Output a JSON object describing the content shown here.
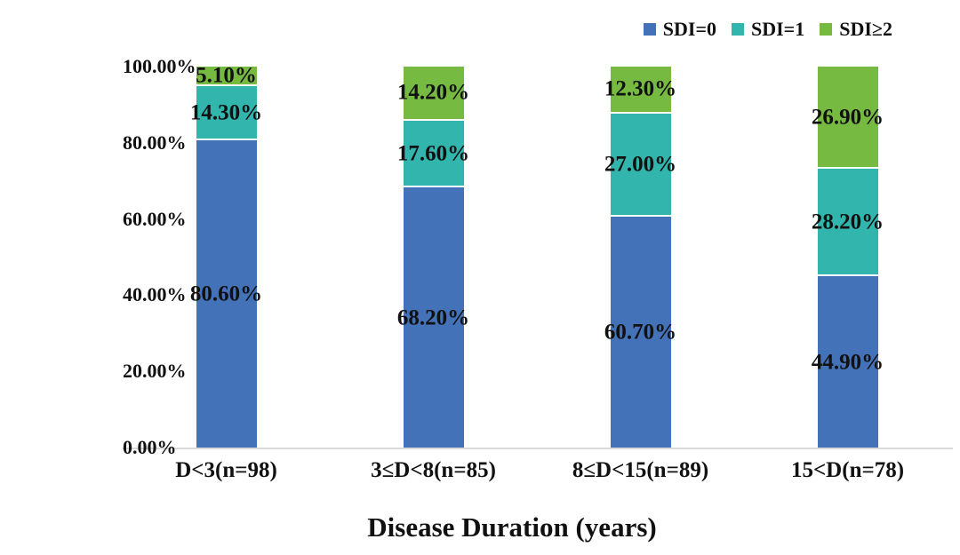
{
  "legend": {
    "items": [
      {
        "label": "SDI=0",
        "color": "#4472b9"
      },
      {
        "label": "SDI=1",
        "color": "#31b5ad"
      },
      {
        "label": "SDI≥2",
        "color": "#77ba42"
      }
    ]
  },
  "chart_data": {
    "type": "bar",
    "stacked": true,
    "title": "",
    "xlabel": "Disease Duration (years)",
    "ylabel": "",
    "ylim": [
      0,
      100
    ],
    "grid": false,
    "legend_position": "top-right",
    "y_ticks": [
      {
        "value": 0,
        "label": "0.00%"
      },
      {
        "value": 20,
        "label": "20.00%"
      },
      {
        "value": 40,
        "label": "40.00%"
      },
      {
        "value": 60,
        "label": "60.00%"
      },
      {
        "value": 80,
        "label": "80.00%"
      },
      {
        "value": 100,
        "label": "100.00%"
      }
    ],
    "categories": [
      "D<3(n=98)",
      "3≤D<8(n=85)",
      "8≤D<15(n=89)",
      "15<D(n=78)"
    ],
    "series": [
      {
        "name": "SDI=0",
        "color": "#4472b9",
        "values": [
          80.6,
          68.2,
          60.7,
          44.9
        ],
        "labels": [
          "80.60%",
          "68.20%",
          "60.70%",
          "44.90%"
        ]
      },
      {
        "name": "SDI=1",
        "color": "#31b5ad",
        "values": [
          14.3,
          17.6,
          27.0,
          28.2
        ],
        "labels": [
          "14.30%",
          "17.60%",
          "27.00%",
          "28.20%"
        ]
      },
      {
        "name": "SDI≥2",
        "color": "#77ba42",
        "values": [
          5.1,
          14.2,
          12.3,
          26.9
        ],
        "labels": [
          "5.10%",
          "14.20%",
          "12.30%",
          "26.90%"
        ]
      }
    ]
  }
}
